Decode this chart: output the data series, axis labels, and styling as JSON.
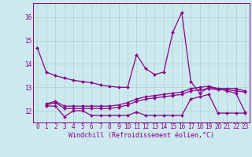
{
  "background_color": "#cde9f0",
  "grid_color": "#b0d8cc",
  "line_color": "#880088",
  "spine_color": "#880088",
  "x_ticks": [
    0,
    1,
    2,
    3,
    4,
    5,
    6,
    7,
    8,
    9,
    10,
    11,
    12,
    13,
    14,
    15,
    16,
    17,
    18,
    19,
    20,
    21,
    22,
    23
  ],
  "xlabel": "Windchill (Refroidissement éolien,°C)",
  "ylim": [
    11.5,
    16.6
  ],
  "yticks": [
    12,
    13,
    14,
    15,
    16
  ],
  "series": [
    {
      "x": [
        0,
        1,
        2,
        3,
        4,
        5,
        6,
        7,
        8,
        9,
        10,
        11,
        12,
        13,
        14,
        15,
        16,
        17,
        18,
        19,
        20,
        21,
        22,
        23
      ],
      "y": [
        14.7,
        13.65,
        13.5,
        13.4,
        13.3,
        13.25,
        13.2,
        13.1,
        13.05,
        13.0,
        13.0,
        14.4,
        13.8,
        13.55,
        13.65,
        15.35,
        16.2,
        13.25,
        12.75,
        13.0,
        12.95,
        12.85,
        12.75,
        11.95
      ]
    },
    {
      "x": [
        1,
        2,
        3,
        4,
        5,
        6,
        7,
        8,
        9,
        10,
        11,
        12,
        13,
        14,
        15,
        16,
        17,
        18,
        19,
        20,
        21,
        22,
        23
      ],
      "y": [
        12.2,
        12.2,
        11.75,
        12.0,
        12.0,
        11.8,
        11.8,
        11.8,
        11.8,
        11.8,
        11.95,
        11.8,
        11.8,
        11.8,
        11.8,
        11.8,
        12.5,
        12.6,
        12.7,
        11.9,
        11.9,
        11.9,
        11.9
      ]
    },
    {
      "x": [
        1,
        2,
        3,
        4,
        5,
        6,
        7,
        8,
        9,
        10,
        11,
        12,
        13,
        14,
        15,
        16,
        17,
        18,
        19,
        20,
        21,
        22,
        23
      ],
      "y": [
        12.25,
        12.35,
        12.1,
        12.1,
        12.1,
        12.1,
        12.1,
        12.1,
        12.15,
        12.25,
        12.4,
        12.5,
        12.55,
        12.6,
        12.65,
        12.7,
        12.85,
        12.9,
        12.95,
        12.9,
        12.9,
        12.85,
        12.8
      ]
    },
    {
      "x": [
        1,
        2,
        3,
        4,
        5,
        6,
        7,
        8,
        9,
        10,
        11,
        12,
        13,
        14,
        15,
        16,
        17,
        18,
        19,
        20,
        21,
        22,
        23
      ],
      "y": [
        12.3,
        12.4,
        12.2,
        12.2,
        12.2,
        12.2,
        12.2,
        12.2,
        12.25,
        12.35,
        12.5,
        12.6,
        12.65,
        12.7,
        12.75,
        12.8,
        12.95,
        13.0,
        13.05,
        12.95,
        12.95,
        12.95,
        12.85
      ]
    }
  ],
  "marker": "D",
  "markersize": 2.0,
  "linewidth": 0.9,
  "tick_fontsize": 5.5,
  "xlabel_fontsize": 6.0
}
